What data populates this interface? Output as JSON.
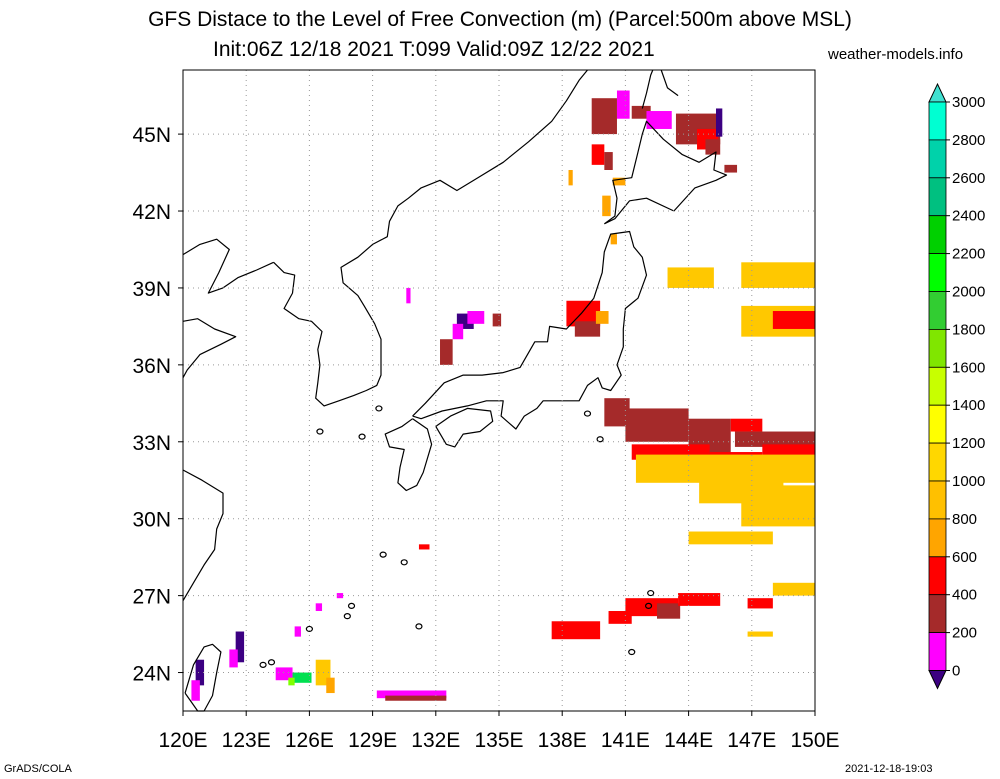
{
  "title": {
    "line1": "GFS Distace to the Level of Free Convection (m) (Parcel:500m above MSL)",
    "line2": "Init:06Z 12/18 2021 T:099 Valid:09Z 12/22 2021"
  },
  "site": "weather-models.info",
  "footer": {
    "left": "GrADS/COLA",
    "right": "2021-12-18-19:03"
  },
  "map": {
    "lon_range": [
      120,
      150
    ],
    "lat_range": [
      22.5,
      47.5
    ],
    "lon_ticks": [
      "120E",
      "123E",
      "126E",
      "129E",
      "132E",
      "135E",
      "138E",
      "141E",
      "144E",
      "147E",
      "150E"
    ],
    "lat_ticks": [
      "24N",
      "27N",
      "30N",
      "33N",
      "36N",
      "39N",
      "42N",
      "45N"
    ],
    "grid": "dotted"
  },
  "colorbar": {
    "labels": [
      "0",
      "200",
      "400",
      "600",
      "800",
      "1000",
      "1200",
      "1400",
      "1600",
      "1800",
      "2000",
      "2200",
      "2400",
      "2600",
      "2800",
      "3000"
    ],
    "colors": [
      "#3c0082",
      "#ff00ff",
      "#a52a2a",
      "#ff0000",
      "#ffa500",
      "#ffc000",
      "#ffd700",
      "#ffff00",
      "#c8ff00",
      "#80e600",
      "#32cd32",
      "#00ff00",
      "#00d000",
      "#00c080",
      "#00d2aa",
      "#00ffd2",
      "#40e0d0"
    ]
  },
  "field": {
    "colors": {
      "0": "#3c0082",
      "200": "#ff00ff",
      "400": "#a52a2a",
      "600": "#ff0000",
      "800": "#ffa500",
      "1000": "#ffc800",
      "1600": "#80ff00",
      "2400": "#00e050"
    }
  }
}
